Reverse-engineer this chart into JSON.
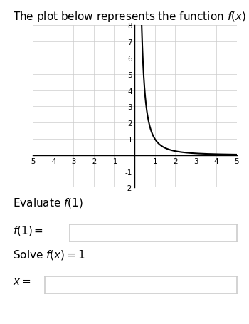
{
  "title": "The plot below represents the function $f(x)$",
  "title_fontsize": 11,
  "xlim": [
    -5,
    5
  ],
  "ylim": [
    -2,
    8
  ],
  "xticks": [
    -5,
    -4,
    -3,
    -2,
    -1,
    1,
    2,
    3,
    4,
    5
  ],
  "yticks": [
    -2,
    -1,
    1,
    2,
    3,
    4,
    5,
    6,
    7,
    8
  ],
  "grid_color": "#cccccc",
  "axis_color": "#000000",
  "curve_color": "#000000",
  "curve_linewidth": 1.5,
  "bg_color": "#ffffff",
  "evaluate_text": "Evaluate $f(1)$",
  "f1_label": "$f(1) =$",
  "solve_text": "Solve $f(x) = 1$",
  "x_label": "$x=$",
  "text_fontsize": 11,
  "label_fontsize": 11,
  "box_color": "#cccccc"
}
